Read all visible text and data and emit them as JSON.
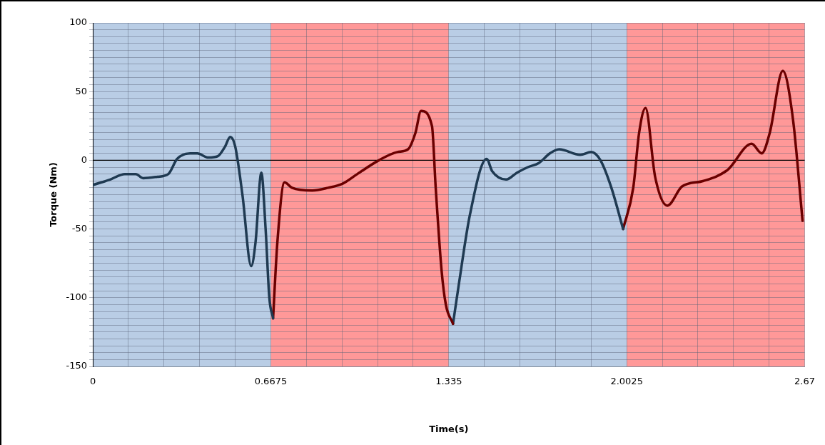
{
  "chart_data": {
    "type": "line",
    "xlabel": "Time(s)",
    "ylabel": "Torque (Nm)",
    "xlim": [
      0,
      2.67
    ],
    "ylim": [
      -150,
      100
    ],
    "xticks": [
      0,
      {
        "value": 0.1335,
        "label": null
      },
      {
        "value": 0.267,
        "label": null
      },
      {
        "value": 0.4005,
        "label": null
      },
      {
        "value": 0.534,
        "label": null
      },
      0.6675,
      {
        "value": 0.801,
        "label": null
      },
      {
        "value": 0.9345,
        "label": null
      },
      {
        "value": 1.068,
        "label": null
      },
      {
        "value": 1.2015,
        "label": null
      },
      1.335,
      {
        "value": 1.4685,
        "label": null
      },
      {
        "value": 1.602,
        "label": null
      },
      {
        "value": 1.7355,
        "label": null
      },
      {
        "value": 1.869,
        "label": null
      },
      2.0025,
      {
        "value": 2.136,
        "label": null
      },
      {
        "value": 2.2695,
        "label": null
      },
      {
        "value": 2.403,
        "label": null
      },
      {
        "value": 2.5365,
        "label": null
      },
      2.67
    ],
    "yticks": [
      -150,
      {
        "value": -145,
        "label": null
      },
      {
        "value": -140,
        "label": null
      },
      {
        "value": -135,
        "label": null
      },
      {
        "value": -130,
        "label": null
      },
      {
        "value": -125,
        "label": null
      },
      {
        "value": -120,
        "label": null
      },
      {
        "value": -115,
        "label": null
      },
      {
        "value": -110,
        "label": null
      },
      {
        "value": -105,
        "label": null
      },
      -100,
      {
        "value": -95,
        "label": null
      },
      {
        "value": -90,
        "label": null
      },
      {
        "value": -85,
        "label": null
      },
      {
        "value": -80,
        "label": null
      },
      {
        "value": -75,
        "label": null
      },
      {
        "value": -70,
        "label": null
      },
      {
        "value": -65,
        "label": null
      },
      {
        "value": -60,
        "label": null
      },
      {
        "value": -55,
        "label": null
      },
      -50,
      {
        "value": -45,
        "label": null
      },
      {
        "value": -40,
        "label": null
      },
      {
        "value": -35,
        "label": null
      },
      {
        "value": -30,
        "label": null
      },
      {
        "value": -25,
        "label": null
      },
      {
        "value": -20,
        "label": null
      },
      {
        "value": -15,
        "label": null
      },
      {
        "value": -10,
        "label": null
      },
      {
        "value": -5,
        "label": null
      },
      0,
      {
        "value": 5,
        "label": null
      },
      {
        "value": 10,
        "label": null
      },
      {
        "value": 15,
        "label": null
      },
      {
        "value": 20,
        "label": null
      },
      {
        "value": 25,
        "label": null
      },
      {
        "value": 30,
        "label": null
      },
      {
        "value": 35,
        "label": null
      },
      {
        "value": 40,
        "label": null
      },
      {
        "value": 45,
        "label": null
      },
      50,
      {
        "value": 55,
        "label": null
      },
      {
        "value": 60,
        "label": null
      },
      {
        "value": 65,
        "label": null
      },
      {
        "value": 70,
        "label": null
      },
      {
        "value": 75,
        "label": null
      },
      {
        "value": 80,
        "label": null
      },
      {
        "value": 85,
        "label": null
      },
      {
        "value": 90,
        "label": null
      },
      {
        "value": 95,
        "label": null
      },
      100
    ],
    "grid": true,
    "legend": false,
    "marker": "none",
    "bands": [
      {
        "axis": "x",
        "from": 0,
        "to": 0.6675,
        "color": "#b9cde5"
      },
      {
        "axis": "x",
        "from": 0.6675,
        "to": 1.335,
        "color": "#ff9898"
      },
      {
        "axis": "x",
        "from": 1.335,
        "to": 2.0025,
        "color": "#b9cde5"
      },
      {
        "axis": "x",
        "from": 2.0025,
        "to": 2.67,
        "color": "#ff9898"
      }
    ],
    "ref_lines": [
      {
        "axis": "y",
        "value": 0,
        "color": "#000000"
      }
    ],
    "series": [
      {
        "color": "#1f3a52",
        "x": [
          0,
          0.065,
          0.12,
          0.161,
          0.188,
          0.242,
          0.283,
          0.316,
          0.365,
          0.392,
          0.433,
          0.469,
          0.496,
          0.515,
          0.534,
          0.561,
          0.594,
          0.61,
          0.632,
          0.648,
          0.662,
          0.676
        ],
        "values": [
          -18,
          -14,
          -10,
          -10,
          -13,
          -12,
          -10,
          1,
          5,
          5,
          2,
          3,
          10,
          17,
          10,
          -25,
          -77,
          -60,
          -9,
          -50,
          -100,
          -115
        ]
      },
      {
        "color": "#6b0000",
        "x": [
          0.676,
          0.692,
          0.719,
          0.747,
          0.823,
          0.883,
          0.937,
          0.992,
          1.073,
          1.142,
          1.182,
          1.21,
          1.231,
          1.272,
          1.286,
          1.308,
          1.324,
          1.351
        ],
        "values": [
          -115,
          -60,
          -16,
          -20,
          -22,
          -20,
          -17,
          -10,
          0,
          6,
          8,
          20,
          36,
          25,
          -20,
          -80,
          -105,
          -119
        ]
      },
      {
        "color": "#1f3a52",
        "x": [
          1.351,
          1.373,
          1.414,
          1.477,
          1.498,
          1.55,
          1.591,
          1.632,
          1.673,
          1.714,
          1.749,
          1.828,
          1.869,
          1.904,
          1.945,
          1.989
        ],
        "values": [
          -119,
          -90,
          -40,
          1,
          -8,
          -14,
          -9,
          -5,
          -2,
          5,
          8,
          4,
          6,
          0,
          -20,
          -50
        ]
      },
      {
        "color": "#6b0000",
        "x": [
          1.989,
          2.027,
          2.049,
          2.073,
          2.109,
          2.155,
          2.21,
          2.291,
          2.381,
          2.471,
          2.509,
          2.539,
          2.588,
          2.626,
          2.662
        ],
        "values": [
          -50,
          -20,
          20,
          38,
          -12,
          -33,
          -19,
          -15,
          -7,
          12,
          5,
          20,
          65,
          30,
          -44
        ]
      }
    ]
  }
}
